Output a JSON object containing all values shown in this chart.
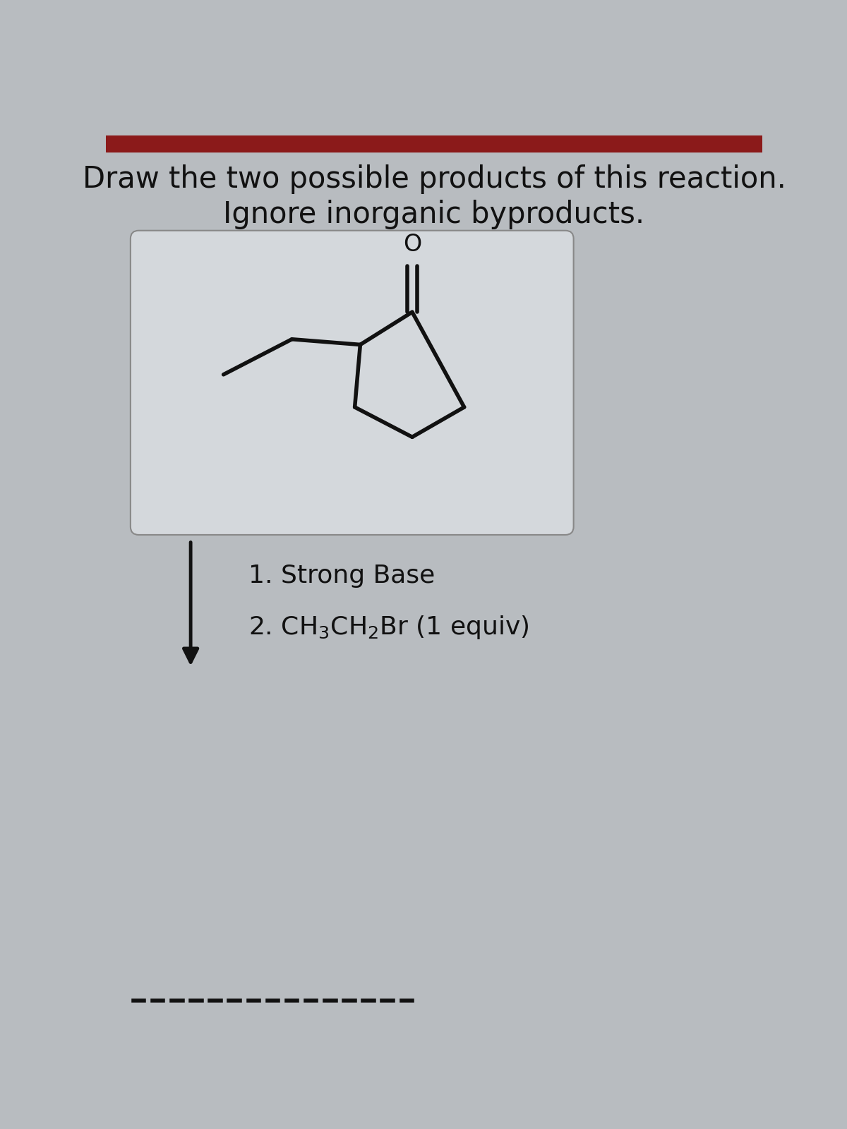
{
  "title_line1": "Draw the two possible products of this reaction.",
  "title_line2": "Ignore inorganic byproducts.",
  "step1": "1. Strong Base",
  "step2": "2. CH₃CH₂Br (1 equiv)",
  "background_color": "#b8bcc0",
  "text_color": "#111111",
  "box_facecolor": "#d4d8dc",
  "box_edgecolor": "#888888",
  "line_color": "#111111",
  "title_fontsize": 30,
  "step_fontsize": 26,
  "mol_lw": 4.0
}
